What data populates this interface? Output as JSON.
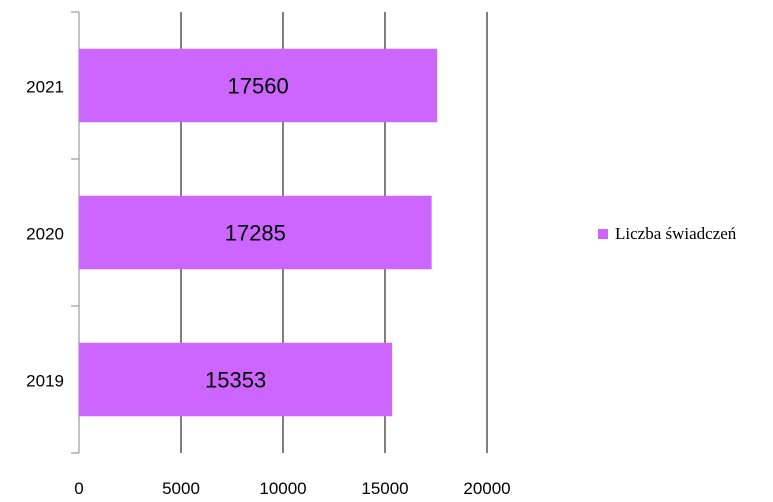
{
  "chart_data": {
    "type": "bar",
    "orientation": "horizontal",
    "categories": [
      "2019",
      "2020",
      "2021"
    ],
    "series": [
      {
        "name": "Liczba świadczeń",
        "values": [
          15353,
          17285,
          17560
        ],
        "color": "#CC66FF"
      }
    ],
    "data_labels": [
      "15353",
      "17285",
      "17560"
    ],
    "x_ticks": [
      "0",
      "5000",
      "10000",
      "15000",
      "20000"
    ],
    "xlim": [
      0,
      20000
    ],
    "grid": "vertical",
    "legend_placement": "right"
  }
}
